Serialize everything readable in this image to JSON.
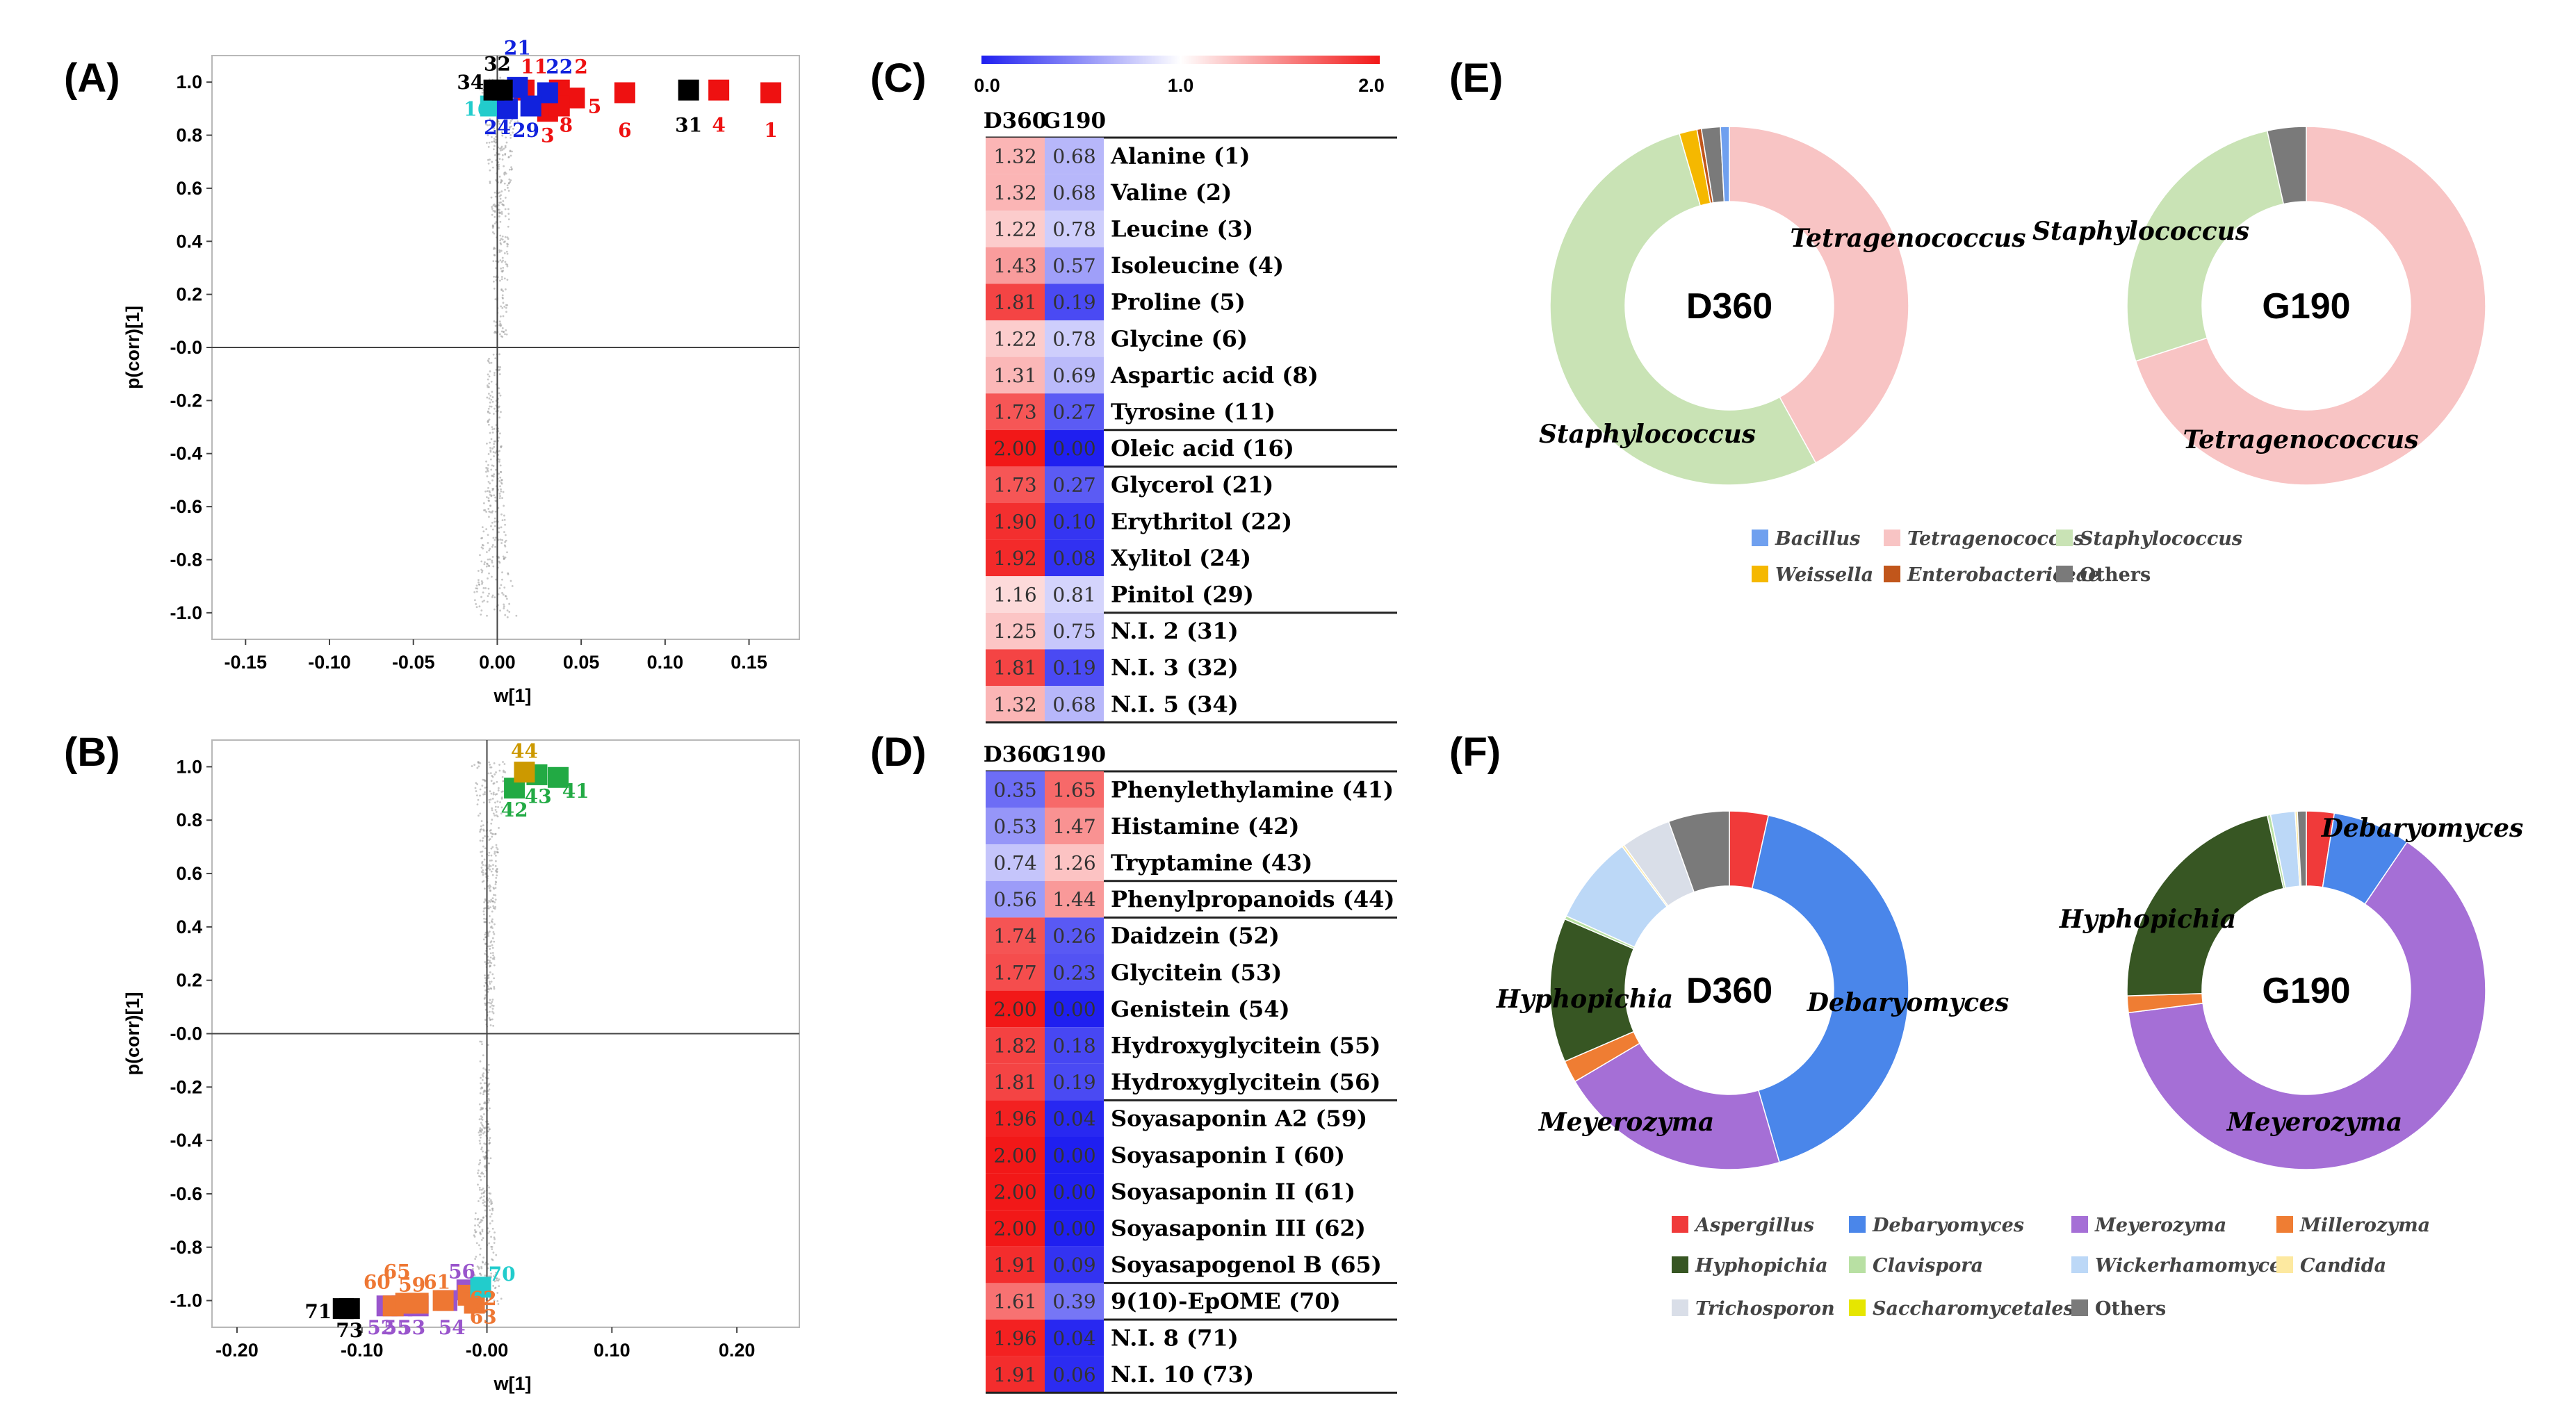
{
  "panel_labels": {
    "A": "(A)",
    "B": "(B)",
    "C": "(C)",
    "D": "(D)",
    "E": "(E)",
    "F": "(F)"
  },
  "chart_data": [
    {
      "id": "A",
      "type": "scatter",
      "xlabel": "w[1]",
      "ylabel": "p(corr)[1]",
      "xlim": [
        -0.17,
        0.18
      ],
      "ylim": [
        -1.1,
        1.1
      ],
      "xticks": [
        "-0.15",
        "-0.10",
        "-0.05",
        "0.00",
        "0.05",
        "0.10",
        "0.15"
      ],
      "xtick_values": [
        -0.15,
        -0.1,
        -0.05,
        0.0,
        0.05,
        0.1,
        0.15
      ],
      "yticks": [
        "1.0",
        "0.8",
        "0.6",
        "0.4",
        "0.2",
        "-0.0",
        "-0.2",
        "-0.4",
        "-0.6",
        "-0.8",
        "-1.0"
      ],
      "ytick_values": [
        1.0,
        0.8,
        0.6,
        0.4,
        0.2,
        0.0,
        -0.2,
        -0.4,
        -0.6,
        -0.8,
        -1.0
      ],
      "points": [
        {
          "label": "1",
          "x": 0.163,
          "y": 0.96,
          "color": "#ee1111",
          "lx": 0.163,
          "ly": 0.82
        },
        {
          "label": "2",
          "x": 0.037,
          "y": 0.97,
          "color": "#ee1111",
          "lx": 0.05,
          "ly": 1.06
        },
        {
          "label": "3",
          "x": 0.03,
          "y": 0.89,
          "color": "#ee1111",
          "lx": 0.03,
          "ly": 0.8
        },
        {
          "label": "4",
          "x": 0.132,
          "y": 0.97,
          "color": "#ee1111",
          "lx": 0.132,
          "ly": 0.84
        },
        {
          "label": "5",
          "x": 0.046,
          "y": 0.94,
          "color": "#ee1111",
          "lx": 0.058,
          "ly": 0.91
        },
        {
          "label": "6",
          "x": 0.076,
          "y": 0.96,
          "color": "#ee1111",
          "lx": 0.076,
          "ly": 0.82
        },
        {
          "label": "8",
          "x": 0.037,
          "y": 0.91,
          "color": "#ee1111",
          "lx": 0.041,
          "ly": 0.84
        },
        {
          "label": "11",
          "x": 0.016,
          "y": 0.97,
          "color": "#ee1111",
          "lx": 0.022,
          "ly": 1.06
        },
        {
          "label": "16",
          "x": -0.004,
          "y": 0.91,
          "color": "#22cccc",
          "lx": -0.012,
          "ly": 0.9
        },
        {
          "label": "21",
          "x": 0.012,
          "y": 0.98,
          "color": "#1122dd",
          "lx": 0.012,
          "ly": 1.13
        },
        {
          "label": "22",
          "x": 0.03,
          "y": 0.96,
          "color": "#1122dd",
          "lx": 0.037,
          "ly": 1.06
        },
        {
          "label": "24",
          "x": 0.006,
          "y": 0.9,
          "color": "#1122dd",
          "lx": 0.0,
          "ly": 0.83
        },
        {
          "label": "29",
          "x": 0.02,
          "y": 0.91,
          "color": "#1122dd",
          "lx": 0.017,
          "ly": 0.82
        },
        {
          "label": "31",
          "x": 0.114,
          "y": 0.97,
          "color": "#000000",
          "lx": 0.114,
          "ly": 0.84
        },
        {
          "label": "32",
          "x": 0.003,
          "y": 0.97,
          "color": "#000000",
          "lx": 0.0,
          "ly": 1.07
        },
        {
          "label": "34",
          "x": -0.002,
          "y": 0.97,
          "color": "#000000",
          "lx": -0.016,
          "ly": 1.0
        }
      ]
    },
    {
      "id": "B",
      "type": "scatter",
      "xlabel": "w[1]",
      "ylabel": "p(corr)[1]",
      "xlim": [
        -0.22,
        0.25
      ],
      "ylim": [
        -1.1,
        1.1
      ],
      "xticks": [
        "-0.20",
        "-0.10",
        "-0.00",
        "0.10",
        "0.20"
      ],
      "xtick_values": [
        -0.2,
        -0.1,
        0.0,
        0.1,
        0.2
      ],
      "yticks": [
        "1.0",
        "0.8",
        "0.6",
        "0.4",
        "0.2",
        "-0.0",
        "-0.2",
        "-0.4",
        "-0.6",
        "-0.8",
        "-1.0"
      ],
      "ytick_values": [
        1.0,
        0.8,
        0.6,
        0.4,
        0.2,
        0.0,
        -0.2,
        -0.4,
        -0.6,
        -0.8,
        -1.0
      ],
      "points": [
        {
          "label": "41",
          "x": 0.057,
          "y": 0.96,
          "color": "#22aa44",
          "lx": 0.071,
          "ly": 0.91
        },
        {
          "label": "42",
          "x": 0.022,
          "y": 0.92,
          "color": "#22aa44",
          "lx": 0.022,
          "ly": 0.84
        },
        {
          "label": "43",
          "x": 0.04,
          "y": 0.97,
          "color": "#22aa44",
          "lx": 0.041,
          "ly": 0.89
        },
        {
          "label": "44",
          "x": 0.03,
          "y": 0.98,
          "color": "#cc9900",
          "lx": 0.03,
          "ly": 1.06
        },
        {
          "label": "52",
          "x": -0.08,
          "y": -1.02,
          "color": "#9955cc",
          "lx": -0.085,
          "ly": -1.1
        },
        {
          "label": "53",
          "x": -0.055,
          "y": -1.02,
          "color": "#9955cc",
          "lx": -0.06,
          "ly": -1.1
        },
        {
          "label": "54",
          "x": -0.032,
          "y": -1.0,
          "color": "#9955cc",
          "lx": -0.028,
          "ly": -1.1
        },
        {
          "label": "55",
          "x": -0.068,
          "y": -1.02,
          "color": "#9955cc",
          "lx": -0.072,
          "ly": -1.1
        },
        {
          "label": "56",
          "x": -0.016,
          "y": -0.96,
          "color": "#9955cc",
          "lx": -0.02,
          "ly": -0.89
        },
        {
          "label": "59",
          "x": -0.055,
          "y": -1.01,
          "color": "#ee7733",
          "lx": -0.06,
          "ly": -0.94
        },
        {
          "label": "60",
          "x": -0.075,
          "y": -1.02,
          "color": "#ee7733",
          "lx": -0.088,
          "ly": -0.93
        },
        {
          "label": "61",
          "x": -0.035,
          "y": -1.0,
          "color": "#ee7733",
          "lx": -0.04,
          "ly": -0.93
        },
        {
          "label": "62",
          "x": -0.015,
          "y": -0.98,
          "color": "#ee7733",
          "lx": -0.003,
          "ly": -0.99
        },
        {
          "label": "63",
          "x": -0.01,
          "y": -1.01,
          "color": "#ee7733",
          "lx": -0.003,
          "ly": -1.06
        },
        {
          "label": "65",
          "x": -0.065,
          "y": -1.01,
          "color": "#ee7733",
          "lx": -0.072,
          "ly": -0.89
        },
        {
          "label": "70",
          "x": -0.005,
          "y": -0.95,
          "color": "#22cccc",
          "lx": 0.012,
          "ly": -0.9
        },
        {
          "label": "71",
          "x": -0.115,
          "y": -1.03,
          "color": "#000000",
          "lx": -0.135,
          "ly": -1.04
        },
        {
          "label": "73",
          "x": -0.11,
          "y": -1.03,
          "color": "#000000",
          "lx": -0.11,
          "ly": -1.11
        }
      ]
    },
    {
      "id": "C",
      "type": "heatmap",
      "columns": [
        "D360",
        "G190"
      ],
      "colorbar": {
        "min": 0.0,
        "mid": 1.0,
        "max": 2.0,
        "labels": [
          "0.0",
          "1.0",
          "2.0"
        ]
      },
      "rows": [
        {
          "name": "Alanine (1)",
          "values": [
            "1.32",
            "0.68"
          ],
          "group": 0
        },
        {
          "name": "Valine (2)",
          "values": [
            "1.32",
            "0.68"
          ],
          "group": 0
        },
        {
          "name": "Leucine (3)",
          "values": [
            "1.22",
            "0.78"
          ],
          "group": 0
        },
        {
          "name": "Isoleucine (4)",
          "values": [
            "1.43",
            "0.57"
          ],
          "group": 0
        },
        {
          "name": "Proline (5)",
          "values": [
            "1.81",
            "0.19"
          ],
          "group": 0
        },
        {
          "name": "Glycine (6)",
          "values": [
            "1.22",
            "0.78"
          ],
          "group": 0
        },
        {
          "name": "Aspartic acid (8)",
          "values": [
            "1.31",
            "0.69"
          ],
          "group": 0
        },
        {
          "name": "Tyrosine (11)",
          "values": [
            "1.73",
            "0.27"
          ],
          "group": 0
        },
        {
          "name": "Oleic acid (16)",
          "values": [
            "2.00",
            "0.00"
          ],
          "group": 1
        },
        {
          "name": "Glycerol (21)",
          "values": [
            "1.73",
            "0.27"
          ],
          "group": 2
        },
        {
          "name": "Erythritol (22)",
          "values": [
            "1.90",
            "0.10"
          ],
          "group": 2
        },
        {
          "name": "Xylitol (24)",
          "values": [
            "1.92",
            "0.08"
          ],
          "group": 2
        },
        {
          "name": "Pinitol (29)",
          "values": [
            "1.16",
            "0.81"
          ],
          "group": 2
        },
        {
          "name": "N.I. 2 (31)",
          "values": [
            "1.25",
            "0.75"
          ],
          "group": 3
        },
        {
          "name": "N.I. 3 (32)",
          "values": [
            "1.81",
            "0.19"
          ],
          "group": 3
        },
        {
          "name": "N.I. 5 (34)",
          "values": [
            "1.32",
            "0.68"
          ],
          "group": 3
        }
      ]
    },
    {
      "id": "D",
      "type": "heatmap",
      "columns": [
        "D360",
        "G190"
      ],
      "rows": [
        {
          "name": "Phenylethylamine (41)",
          "values": [
            "0.35",
            "1.65"
          ],
          "group": 0
        },
        {
          "name": "Histamine (42)",
          "values": [
            "0.53",
            "1.47"
          ],
          "group": 0
        },
        {
          "name": "Tryptamine (43)",
          "values": [
            "0.74",
            "1.26"
          ],
          "group": 0
        },
        {
          "name": "Phenylpropanoids (44)",
          "values": [
            "0.56",
            "1.44"
          ],
          "group": 1
        },
        {
          "name": "Daidzein (52)",
          "values": [
            "1.74",
            "0.26"
          ],
          "group": 2
        },
        {
          "name": "Glycitein (53)",
          "values": [
            "1.77",
            "0.23"
          ],
          "group": 2
        },
        {
          "name": "Genistein (54)",
          "values": [
            "2.00",
            "0.00"
          ],
          "group": 2
        },
        {
          "name": "Hydroxyglycitein (55)",
          "values": [
            "1.82",
            "0.18"
          ],
          "group": 2
        },
        {
          "name": "Hydroxyglycitein (56)",
          "values": [
            "1.81",
            "0.19"
          ],
          "group": 2
        },
        {
          "name": "Soyasaponin A2 (59)",
          "values": [
            "1.96",
            "0.04"
          ],
          "group": 3
        },
        {
          "name": "Soyasaponin I (60)",
          "values": [
            "2.00",
            "0.00"
          ],
          "group": 3
        },
        {
          "name": "Soyasaponin II (61)",
          "values": [
            "2.00",
            "0.00"
          ],
          "group": 3
        },
        {
          "name": "Soyasaponin III (62)",
          "values": [
            "2.00",
            "0.00"
          ],
          "group": 3
        },
        {
          "name": "Soyasapogenol B (65)",
          "values": [
            "1.91",
            "0.09"
          ],
          "group": 3
        },
        {
          "name": "9(10)-EpOME (70)",
          "values": [
            "1.61",
            "0.39"
          ],
          "group": 4
        },
        {
          "name": "N.I. 8 (71)",
          "values": [
            "1.96",
            "0.04"
          ],
          "group": 5
        },
        {
          "name": "N.I. 10 (73)",
          "values": [
            "1.91",
            "0.06"
          ],
          "group": 5
        }
      ]
    },
    {
      "id": "E",
      "type": "pie",
      "donuts": [
        {
          "center_label": "D360",
          "slices": [
            {
              "name": "Tetragenococcus",
              "value": 42.0
            },
            {
              "name": "Staphylococcus",
              "value": 53.5
            },
            {
              "name": "Weissella",
              "value": 1.6
            },
            {
              "name": "Enterobactericeae",
              "value": 0.4
            },
            {
              "name": "Others",
              "value": 1.7
            },
            {
              "name": "Bacillus",
              "value": 0.8
            }
          ],
          "labels": [
            {
              "text": "Tetragenococcus"
            },
            {
              "text": "Staphylococcus"
            }
          ]
        },
        {
          "center_label": "G190",
          "slices": [
            {
              "name": "Tetragenococcus",
              "value": 70.0
            },
            {
              "name": "Staphylococcus",
              "value": 26.5
            },
            {
              "name": "Others",
              "value": 3.5
            }
          ],
          "labels": [
            {
              "text": "Staphylococcus"
            },
            {
              "text": "Tetragenococcus"
            }
          ]
        }
      ],
      "legend": [
        {
          "name": "Bacillus",
          "italic": true
        },
        {
          "name": "Tetragenococcus",
          "italic": true
        },
        {
          "name": "Staphylococcus",
          "italic": true
        },
        {
          "name": "Weissella",
          "italic": true
        },
        {
          "name": "Enterobactericeae",
          "italic": true
        },
        {
          "name": "Others",
          "italic": false
        }
      ]
    },
    {
      "id": "F",
      "type": "pie",
      "donuts": [
        {
          "center_label": "D360",
          "slices": [
            {
              "name": "Aspergillus",
              "value": 3.5
            },
            {
              "name": "Debaryomyces",
              "value": 42.0
            },
            {
              "name": "Meyerozyma",
              "value": 21.0
            },
            {
              "name": "Millerozyma",
              "value": 2.0
            },
            {
              "name": "Hyphopichia",
              "value": 13.0
            },
            {
              "name": "Clavispora",
              "value": 0.3
            },
            {
              "name": "Wickerhamomyces",
              "value": 8.0
            },
            {
              "name": "Candida",
              "value": 0.2
            },
            {
              "name": "Trichosporon",
              "value": 4.5
            },
            {
              "name": "Saccharomycetales",
              "value": 0.0
            },
            {
              "name": "Others",
              "value": 5.5
            }
          ],
          "labels": [
            {
              "text": "Debaryomyces"
            },
            {
              "text": "Hyphopichia"
            },
            {
              "text": "Meyerozyma"
            }
          ]
        },
        {
          "center_label": "G190",
          "slices": [
            {
              "name": "Aspergillus",
              "value": 2.5
            },
            {
              "name": "Debaryomyces",
              "value": 7.0
            },
            {
              "name": "Meyerozyma",
              "value": 63.5
            },
            {
              "name": "Millerozyma",
              "value": 1.5
            },
            {
              "name": "Hyphopichia",
              "value": 22.0
            },
            {
              "name": "Clavispora",
              "value": 0.3
            },
            {
              "name": "Wickerhamomyces",
              "value": 2.2
            },
            {
              "name": "Candida",
              "value": 0.2
            },
            {
              "name": "Trichosporon",
              "value": 0.0
            },
            {
              "name": "Saccharomycetales",
              "value": 0.0
            },
            {
              "name": "Others",
              "value": 0.8
            }
          ],
          "labels": [
            {
              "text": "Debaryomyces"
            },
            {
              "text": "Hyphopichia"
            },
            {
              "text": "Meyerozyma"
            }
          ]
        }
      ],
      "legend": [
        {
          "name": "Aspergillus",
          "italic": true
        },
        {
          "name": "Debaryomyces",
          "italic": true
        },
        {
          "name": "Meyerozyma",
          "italic": true
        },
        {
          "name": "Millerozyma",
          "italic": true
        },
        {
          "name": "Hyphopichia",
          "italic": true
        },
        {
          "name": "Clavispora",
          "italic": true
        },
        {
          "name": "Wickerhamomyces",
          "italic": true
        },
        {
          "name": "Candida",
          "italic": true
        },
        {
          "name": "Trichosporon",
          "italic": true
        },
        {
          "name": "Saccharomycetales",
          "italic": true
        },
        {
          "name": "Others",
          "italic": false
        }
      ]
    }
  ],
  "colors": {
    "Bacillus": "#6fa0ef",
    "Tetragenococcus": "#f8c4c4",
    "Staphylococcus": "#c9e3b5",
    "Weissella": "#f5b800",
    "Enterobactericeae": "#c1561b",
    "Others": "#7a7a7a",
    "Aspergillus": "#f03a3a",
    "Debaryomyces": "#4a86ea",
    "Meyerozyma": "#a56fd6",
    "Millerozyma": "#ef7d33",
    "Hyphopichia": "#375623",
    "Clavispora": "#b8e0a3",
    "Wickerhamomyces": "#bcd8f7",
    "Candida": "#fde9a0",
    "Trichosporon": "#d9dee8",
    "Saccharomycetales": "#e6e600",
    "heat_low": "#1f1ff0",
    "heat_mid": "#ffffff",
    "heat_high": "#f21818"
  }
}
